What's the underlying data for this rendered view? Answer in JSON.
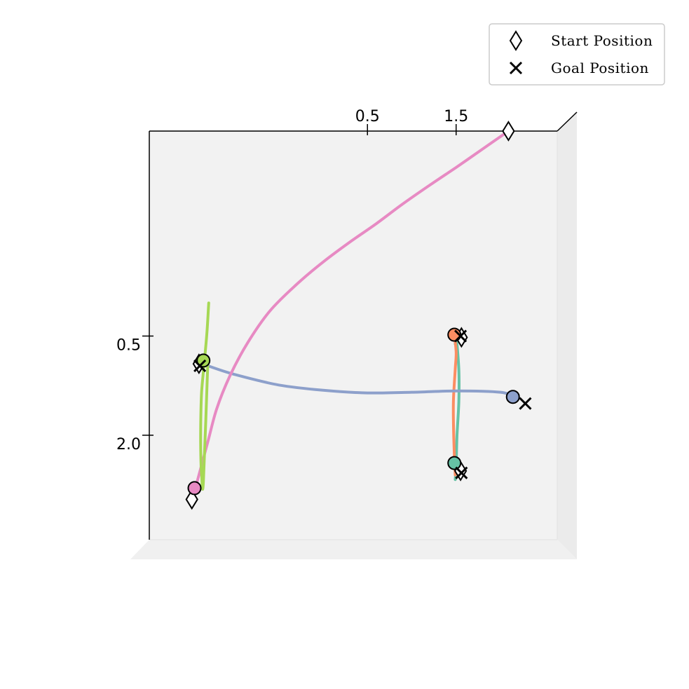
{
  "chart_data": {
    "type": "line",
    "view": "3d-top-down",
    "title": "",
    "xlabel": "",
    "ylabel": "",
    "grid": false,
    "legend_placement": "top-right",
    "x_axis": {
      "ticks": [
        {
          "value": 0.5,
          "label": "0.5"
        },
        {
          "value": 1.5,
          "label": "1.5"
        }
      ],
      "position": "top"
    },
    "y_axis": {
      "ticks": [
        {
          "value": 0.5,
          "label": "0.5"
        },
        {
          "value": 2.0,
          "label": "2.0"
        }
      ],
      "position": "left",
      "inverted": true
    },
    "xlim": [
      -1.96,
      2.64
    ],
    "ylim": [
      -2.6,
      3.58
    ],
    "legend": [
      {
        "label": "Start Position",
        "marker": "diamond"
      },
      {
        "label": "Goal Position",
        "marker": "x"
      }
    ],
    "series": [
      {
        "color": "#66c2a5",
        "x": [
          1.49,
          1.5,
          1.51,
          1.53,
          1.53,
          1.5,
          1.49
        ],
        "y": [
          2.67,
          2.45,
          2.0,
          1.5,
          1.0,
          0.5,
          0.62
        ],
        "current": {
          "x": 1.48,
          "y": 2.42
        },
        "goal": {
          "x": 1.56,
          "y": 2.57
        }
      },
      {
        "color": "#fc8d62",
        "x": [
          1.48,
          1.5,
          1.49,
          1.47,
          1.47,
          1.48,
          1.49
        ],
        "y": [
          0.48,
          0.75,
          1.0,
          1.45,
          1.85,
          2.3,
          2.6
        ],
        "current": {
          "x": 1.48,
          "y": 0.48
        },
        "goal": {
          "x": 1.55,
          "y": 0.5
        }
      },
      {
        "color": "#8da0cb",
        "x": [
          -1.3,
          -1.0,
          -0.5,
          0.0,
          0.5,
          1.0,
          1.5,
          2.0,
          2.14
        ],
        "y": [
          0.95,
          1.08,
          1.24,
          1.32,
          1.36,
          1.35,
          1.33,
          1.35,
          1.42
        ],
        "current": {
          "x": 2.14,
          "y": 1.42
        },
        "goal": {
          "x": 2.28,
          "y": 1.52
        }
      },
      {
        "color": "#e78ac3",
        "x": [
          2.09,
          1.8,
          1.5,
          1.2,
          0.9,
          0.6,
          0.3,
          0.0,
          -0.3,
          -0.6,
          -0.85,
          -1.05,
          -1.2,
          -1.3,
          -1.44
        ],
        "y": [
          -2.6,
          -2.33,
          -2.05,
          -1.78,
          -1.5,
          -1.2,
          -0.92,
          -0.62,
          -0.28,
          0.12,
          0.6,
          1.1,
          1.6,
          2.1,
          2.8
        ],
        "current": {
          "x": -1.45,
          "y": 2.8
        },
        "goal": null
      },
      {
        "color": "#a6d854",
        "x": [
          -1.29,
          -1.31,
          -1.34,
          -1.37,
          -1.38,
          -1.38,
          -1.37,
          -1.35,
          -1.3
        ],
        "y": [
          0.0,
          0.45,
          0.9,
          1.35,
          1.8,
          2.25,
          2.6,
          2.7,
          0.9
        ],
        "current": {
          "x": -1.35,
          "y": 0.87
        },
        "goal": {
          "x": -1.39,
          "y": 0.95
        }
      }
    ],
    "starts": [
      {
        "x": 2.09,
        "y": -2.6
      },
      {
        "x": -1.48,
        "y": 2.97
      },
      {
        "x": -1.4,
        "y": 0.92
      },
      {
        "x": 1.56,
        "y": 0.52
      },
      {
        "x": 1.55,
        "y": 2.54
      }
    ]
  }
}
